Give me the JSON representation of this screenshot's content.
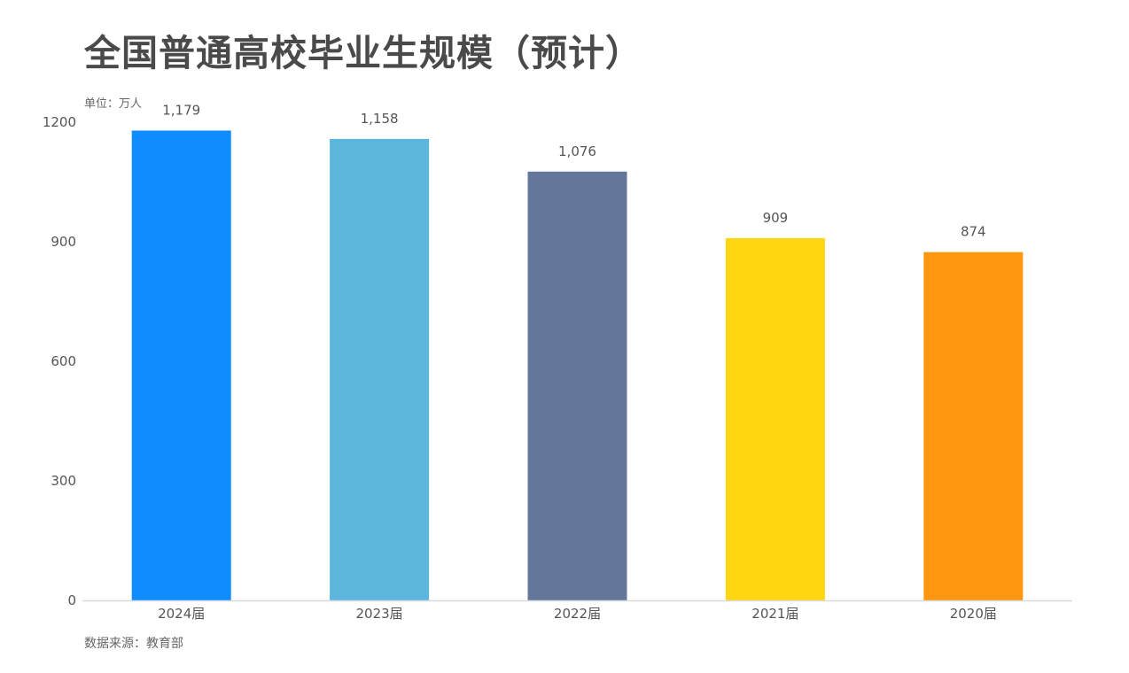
{
  "chart_data": {
    "type": "bar",
    "title": "全国普通高校毕业生规模（预计）",
    "unit": "单位：万人",
    "source": "数据来源：教育部",
    "categories": [
      "2024届",
      "2023届",
      "2022届",
      "2021届",
      "2020届"
    ],
    "values": [
      1179,
      1158,
      1076,
      909,
      874
    ],
    "value_labels": [
      "1,179",
      "1,158",
      "1,076",
      "909",
      "874"
    ],
    "colors": [
      "#0f8cff",
      "#5cb5dc",
      "#64769a",
      "#ffd60f",
      "#ff960f"
    ],
    "yticks": [
      0,
      300,
      600,
      900,
      1200
    ],
    "ylim": [
      0,
      1200
    ],
    "grid": false,
    "legend": "none"
  }
}
